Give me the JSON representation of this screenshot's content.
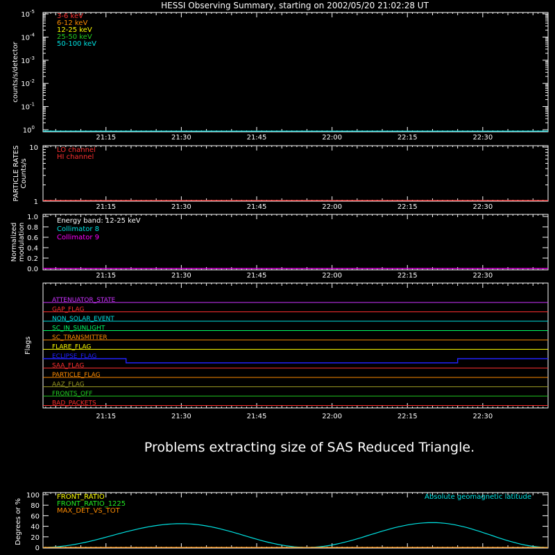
{
  "title": "HESSI Observing Summary, starting on 2002/05/20 21:02:28 UT",
  "message": "Problems extracting size of SAS Reduced Triangle.",
  "time_ticks": [
    "21:15",
    "21:30",
    "21:45",
    "22:00",
    "22:15",
    "22:30"
  ],
  "chart_data": [
    {
      "type": "line",
      "id": "count-rates",
      "ylabel": "counts/s/detector",
      "yscale": "log",
      "ytick_mantissa": "10",
      "ytick_exponents": [
        "-5",
        "-4",
        "-3",
        "-2",
        "-1",
        "0"
      ],
      "x_start": "21:02:28",
      "x_end": "22:43",
      "legend": [
        {
          "label": "3-6 keV",
          "color": "#ff3030"
        },
        {
          "label": "6-12 keV",
          "color": "#ff8c00"
        },
        {
          "label": "12-25 keV",
          "color": "#ffff00"
        },
        {
          "label": "25-50 keV",
          "color": "#22cc22"
        },
        {
          "label": "50-100 keV",
          "color": "#00e5e5"
        }
      ],
      "series_color": "#00e5e5"
    },
    {
      "type": "line",
      "id": "particle-rates",
      "ylabel": [
        "PARTICLE RATES",
        "Counts/s"
      ],
      "yscale": "log",
      "yticks": [
        "10",
        "1"
      ],
      "legend": [
        {
          "label": "LO channel",
          "color": "#ff3030"
        },
        {
          "label": "HI channel",
          "color": "#ff3030"
        }
      ],
      "series_color": "#ff3030"
    },
    {
      "type": "line",
      "id": "modulation",
      "ylabel": [
        "Normalized",
        "modulation"
      ],
      "yticks": [
        "1.0",
        "0.8",
        "0.6",
        "0.4",
        "0.2",
        "0.0"
      ],
      "ylim": [
        0,
        1
      ],
      "legend": [
        {
          "label": "Energy band: 12-25 keV",
          "color": "#ffffff"
        },
        {
          "label": "Collimator 8",
          "color": "#00e5e5"
        },
        {
          "label": "Collimator 9",
          "color": "#ff00ff"
        }
      ],
      "series_color": "#ff00ff",
      "values": [
        0,
        0
      ]
    },
    {
      "type": "line",
      "id": "flags",
      "ylabel": "Flags",
      "flags": [
        {
          "label": "ATTENUATOR_STATE",
          "color": "#cc33ff"
        },
        {
          "label": "GAP_FLAG",
          "color": "#ff3030"
        },
        {
          "label": "NON_SOLAR_EVENT",
          "color": "#00e5e5"
        },
        {
          "label": "SC_IN_SUNLIGHT",
          "color": "#00ff66"
        },
        {
          "label": "SC_TRANSMITTER",
          "color": "#ff8c00"
        },
        {
          "label": "FLARE_FLAG",
          "color": "#ffff00"
        },
        {
          "label": "ECLIPSE_FLAG",
          "color": "#2222ff"
        },
        {
          "label": "SAA_FLAG",
          "color": "#ff3030"
        },
        {
          "label": "PARTICLE_FLAG",
          "color": "#ff8c00"
        },
        {
          "label": "AAZ_FLAG",
          "color": "#999922"
        },
        {
          "label": "FRONTS_OFF",
          "color": "#22cc22"
        },
        {
          "label": "BAD_PACKETS",
          "color": "#ff3030"
        }
      ],
      "eclipse_off_interval": [
        "21:19",
        "22:25"
      ]
    },
    {
      "type": "line",
      "id": "ratios",
      "ylabel": "Degrees or %",
      "yticks": [
        "100",
        "80",
        "60",
        "40",
        "20",
        "0"
      ],
      "ylim": [
        0,
        100
      ],
      "legend": [
        {
          "label": "FRONT_RATIO",
          "color": "#ffff00"
        },
        {
          "label": "FRONT_RATIO_1225",
          "color": "#22ee22"
        },
        {
          "label": "MAX_DET_VS_TOT",
          "color": "#ff8c00"
        }
      ],
      "right_label": {
        "label": "Absolute geomagnetic latitude",
        "color": "#00e5e5"
      },
      "series": [
        {
          "name": "Absolute geomagnetic latitude",
          "color": "#00e5e5",
          "x": [
            "21:02:28",
            "21:30",
            "21:55",
            "22:20",
            "22:43"
          ],
          "y": [
            0,
            45,
            0,
            47,
            0
          ]
        },
        {
          "name": "MAX_DET_VS_TOT",
          "color": "#ff8c00",
          "x": [
            "21:02:28",
            "22:43"
          ],
          "y": [
            0,
            0
          ]
        }
      ]
    }
  ]
}
